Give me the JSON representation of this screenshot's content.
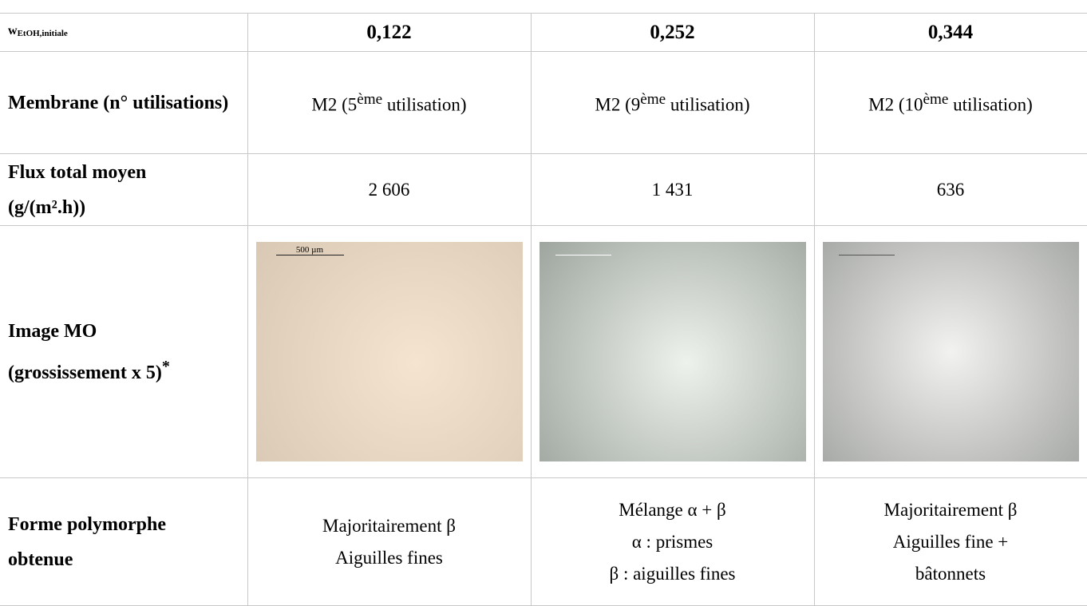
{
  "table": {
    "header": {
      "label": {
        "main": "w",
        "sub": "EtOH,initiale"
      },
      "columns": [
        "0,122",
        "0,252",
        "0,344"
      ]
    },
    "rows": [
      {
        "label": "Membrane (n° utilisations)",
        "cells": [
          {
            "pre": "M2 (5",
            "sup": "ème",
            "post": " utilisation)"
          },
          {
            "pre": "M2 (9",
            "sup": "ème",
            "post": " utilisation)"
          },
          {
            "pre": "M2 (10",
            "sup": "ème",
            "post": " utilisation)"
          }
        ]
      },
      {
        "label": {
          "line1": "Flux total moyen",
          "line2": "(g/(m².h))"
        },
        "cells": [
          "2 606",
          "1 431",
          "636"
        ]
      },
      {
        "label": {
          "line1": "Image MO",
          "line2": "(grossissement x 5)",
          "sup": "*"
        },
        "images": [
          {
            "scale": "500 µm"
          },
          {},
          {}
        ]
      },
      {
        "label": {
          "line1": "Forme polymorphe",
          "line2": "obtenue"
        },
        "cells": [
          [
            "Majoritairement β",
            "Aiguilles fines"
          ],
          [
            "Mélange α + β",
            "α : prismes",
            "β : aiguilles fines"
          ],
          [
            "Majoritairement β",
            "Aiguilles fine +",
            "bâtonnets"
          ]
        ]
      }
    ]
  }
}
